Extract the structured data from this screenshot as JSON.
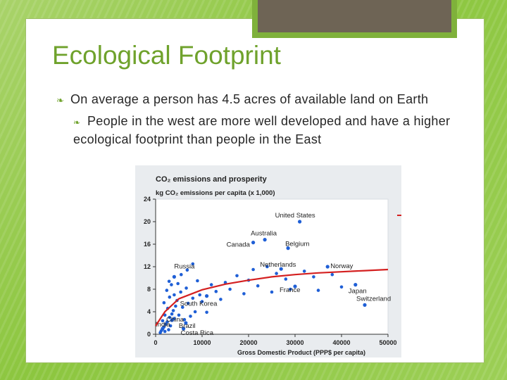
{
  "slide": {
    "title": "Ecological Footprint",
    "bullets": [
      {
        "text": "On average a person has 4.5 acres of available land on Earth",
        "level": 1
      },
      {
        "text": "People in the west are more well developed and have a higher ecological footprint than people in the East",
        "level": 2
      }
    ]
  },
  "chart_data": {
    "type": "scatter",
    "title": "CO₂ emissions and prosperity",
    "ylabel": "kg CO₂ emissions per capita (x 1,000)",
    "xlabel": "Gross Domestic Product (PPP$ per capita)",
    "xlim": [
      0,
      50000
    ],
    "ylim": [
      0,
      24
    ],
    "xticks": [
      "0",
      "10000",
      "20000",
      "30000",
      "40000",
      "50000"
    ],
    "yticks": [
      "0",
      "4",
      "8",
      "12",
      "16",
      "20",
      "24"
    ],
    "point_color": "#1f5fd6",
    "trend_color": "#d42020",
    "grid": false,
    "labeled_points": [
      {
        "label": "United States",
        "x": 31000,
        "y": 20
      },
      {
        "label": "Australia",
        "x": 23500,
        "y": 16.8
      },
      {
        "label": "Canada",
        "x": 21000,
        "y": 16.3
      },
      {
        "label": "Belgium",
        "x": 28500,
        "y": 15.3
      },
      {
        "label": "Netherlands",
        "x": 27000,
        "y": 11.6
      },
      {
        "label": "Norway",
        "x": 37000,
        "y": 12
      },
      {
        "label": "Japan",
        "x": 43000,
        "y": 8.8
      },
      {
        "label": "France",
        "x": 30000,
        "y": 8.5
      },
      {
        "label": "Switzerland",
        "x": 45000,
        "y": 5.2
      },
      {
        "label": "Russia",
        "x": 4000,
        "y": 10.2
      },
      {
        "label": "South Korea",
        "x": 11000,
        "y": 6.8
      },
      {
        "label": "China",
        "x": 3500,
        "y": 2.5
      },
      {
        "label": "Brazil",
        "x": 6500,
        "y": 2.0
      },
      {
        "label": "India",
        "x": 1500,
        "y": 1.0
      },
      {
        "label": "Costa Rica",
        "x": 6000,
        "y": 1.0
      }
    ],
    "other_points": [
      [
        1000,
        0.3
      ],
      [
        1200,
        0.6
      ],
      [
        1500,
        0.9
      ],
      [
        1800,
        1.3
      ],
      [
        2000,
        0.5
      ],
      [
        2200,
        1.8
      ],
      [
        2500,
        2.2
      ],
      [
        2800,
        0.8
      ],
      [
        3000,
        3.0
      ],
      [
        3200,
        1.5
      ],
      [
        3500,
        3.6
      ],
      [
        3800,
        4.2
      ],
      [
        4000,
        2.8
      ],
      [
        4300,
        5.0
      ],
      [
        4600,
        6.0
      ],
      [
        5000,
        3.4
      ],
      [
        5400,
        7.5
      ],
      [
        5800,
        4.8
      ],
      [
        6200,
        2.6
      ],
      [
        6600,
        8.2
      ],
      [
        7000,
        5.5
      ],
      [
        7500,
        3.2
      ],
      [
        8000,
        6.4
      ],
      [
        8500,
        4.0
      ],
      [
        9000,
        9.5
      ],
      [
        9500,
        7.0
      ],
      [
        10000,
        5.8
      ],
      [
        11000,
        3.9
      ],
      [
        12000,
        8.8
      ],
      [
        13000,
        7.6
      ],
      [
        14000,
        6.2
      ],
      [
        15000,
        9.2
      ],
      [
        16000,
        8.0
      ],
      [
        17500,
        10.4
      ],
      [
        19000,
        7.2
      ],
      [
        20000,
        9.6
      ],
      [
        21000,
        11.5
      ],
      [
        22000,
        8.6
      ],
      [
        24000,
        12.0
      ],
      [
        25000,
        7.5
      ],
      [
        26000,
        10.8
      ],
      [
        28000,
        9.8
      ],
      [
        29000,
        8.0
      ],
      [
        32000,
        11.2
      ],
      [
        34000,
        10.2
      ],
      [
        35000,
        7.8
      ],
      [
        38000,
        10.6
      ],
      [
        40000,
        8.4
      ],
      [
        1500,
        2.4
      ],
      [
        2000,
        3.4
      ],
      [
        2600,
        4.6
      ],
      [
        3000,
        6.6
      ],
      [
        3400,
        8.8
      ],
      [
        2400,
        7.8
      ],
      [
        1800,
        5.6
      ],
      [
        2900,
        9.4
      ],
      [
        4000,
        7.0
      ],
      [
        4800,
        9.0
      ],
      [
        5500,
        10.6
      ],
      [
        6800,
        11.4
      ],
      [
        8000,
        12.5
      ]
    ],
    "trend": [
      [
        0,
        1.5
      ],
      [
        2000,
        4.0
      ],
      [
        5000,
        6.3
      ],
      [
        10000,
        7.9
      ],
      [
        15000,
        8.9
      ],
      [
        20000,
        9.6
      ],
      [
        25000,
        10.2
      ],
      [
        30000,
        10.6
      ],
      [
        35000,
        10.9
      ],
      [
        40000,
        11.1
      ],
      [
        45000,
        11.3
      ],
      [
        50000,
        11.5
      ]
    ]
  }
}
